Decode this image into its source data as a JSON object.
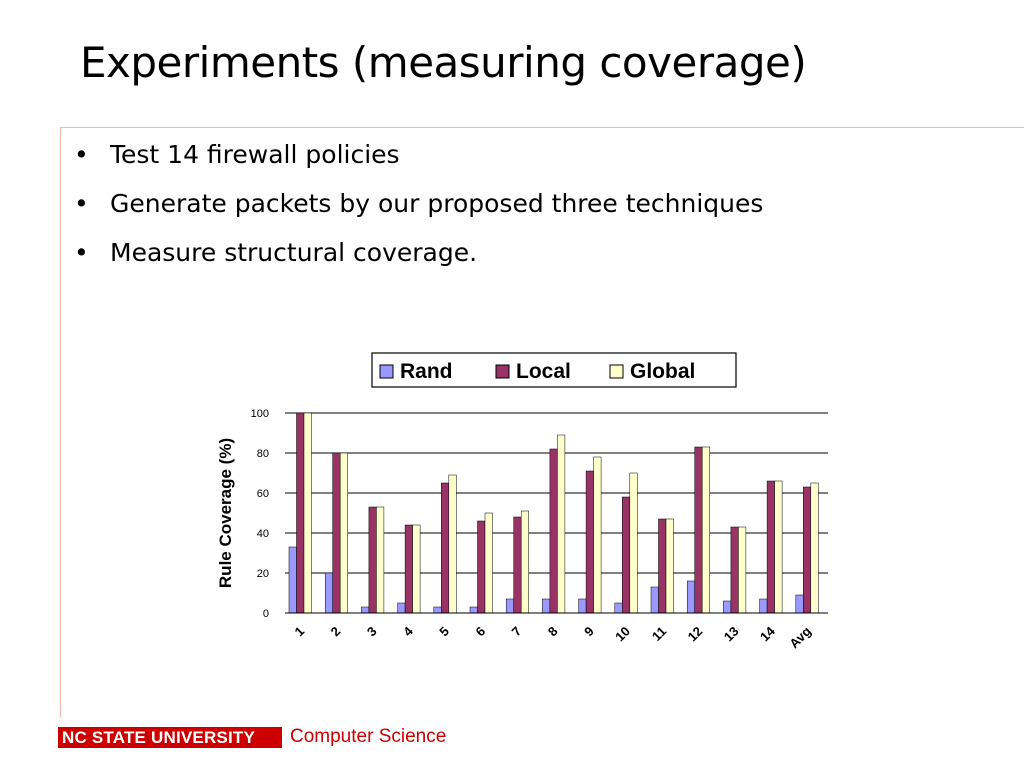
{
  "slide": {
    "title": "Experiments (measuring coverage)",
    "bullets": [
      "Test 14 firewall policies",
      "Generate packets by our proposed three techniques",
      "Measure structural coverage."
    ],
    "bullet_glyph": "•"
  },
  "footer": {
    "logo_text": "NC STATE UNIVERSITY",
    "dept": "Computer Science",
    "color": "#cc0000"
  },
  "chart_data": {
    "type": "bar",
    "ylabel": "Rule Coverage (%)",
    "xlabel": "",
    "ylim": [
      0,
      100
    ],
    "yticks": [
      0,
      20,
      40,
      60,
      80,
      100
    ],
    "grid": true,
    "legend_position": "top",
    "categories": [
      "1",
      "2",
      "3",
      "4",
      "5",
      "6",
      "7",
      "8",
      "9",
      "10",
      "11",
      "12",
      "13",
      "14",
      "Avg"
    ],
    "series": [
      {
        "name": "Rand",
        "color": "#9999ff",
        "values": [
          33,
          20,
          3,
          5,
          3,
          3,
          7,
          7,
          7,
          5,
          13,
          16,
          6,
          7,
          9
        ]
      },
      {
        "name": "Local",
        "color": "#993366",
        "values": [
          100,
          80,
          53,
          44,
          65,
          46,
          48,
          82,
          71,
          58,
          47,
          83,
          43,
          66,
          63
        ]
      },
      {
        "name": "Global",
        "color": "#ffffcc",
        "values": [
          100,
          80,
          53,
          44,
          69,
          50,
          51,
          89,
          78,
          70,
          47,
          83,
          43,
          66,
          65
        ]
      }
    ]
  }
}
